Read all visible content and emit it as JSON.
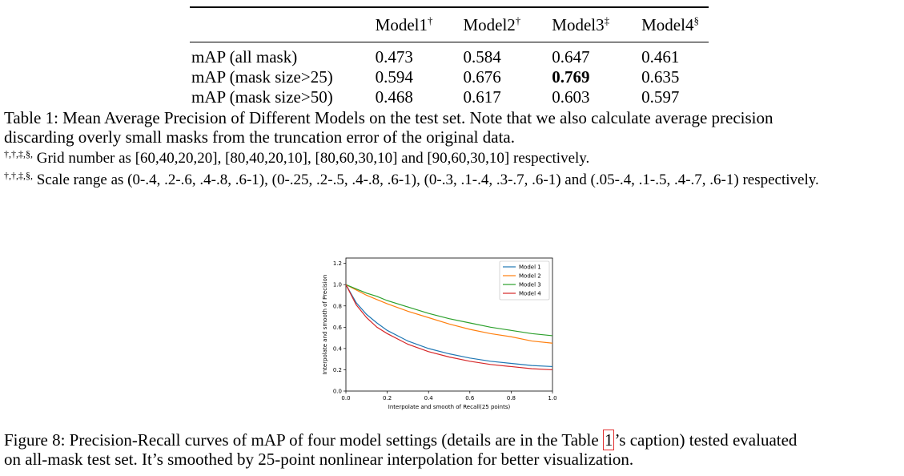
{
  "table": {
    "headers": [
      "",
      "Model1",
      "Model2",
      "Model3",
      "Model4"
    ],
    "header_marks": [
      "",
      "†",
      "†",
      "‡",
      "§"
    ],
    "rows": [
      {
        "label": "mAP (all mask)",
        "values": [
          "0.473",
          "0.584",
          "0.647",
          "0.461"
        ]
      },
      {
        "label": "mAP (mask size>25)",
        "values": [
          "0.594",
          "0.676",
          "0.769",
          "0.635"
        ]
      },
      {
        "label": "mAP (mask size>50)",
        "values": [
          "0.468",
          "0.617",
          "0.603",
          "0.597"
        ]
      }
    ],
    "caption_line1": "Table 1: Mean Average Precision of Different Models on the test set. Note that we also calculate average precision",
    "caption_line2": "discarding overly small masks from the truncation error of the original data.",
    "note_marks": "†,†,‡,§,",
    "note_grid": "Grid number as [60,40,20,20], [80,40,20,10], [80,60,30,10] and [90,60,30,10] respectively.",
    "note_scale": "Scale range as (0-.4, .2-.6, .4-.8, .6-1), (0-.25, .2-.5, .4-.8, .6-1), (0-.3, .1-.4, .3-.7, .6-1) and (.05-.4, .1-.5, .4-.7, .6-1) respectively."
  },
  "figure": {
    "caption_pre": "Figure 8: Precision-Recall curves of mAP of four model settings (details are in the Table ",
    "caption_ref": "1",
    "caption_post": "’s caption) tested evaluated",
    "caption_line2": "on all-mask test set. It’s smoothed by 25-point nonlinear interpolation for better visualization."
  },
  "chart_data": {
    "type": "line",
    "title": "",
    "xlabel": "Interpolate and smooth of Recall(25 points)",
    "ylabel": "Interpolate and smooth of Precision",
    "xlim": [
      0.0,
      1.0
    ],
    "ylim": [
      0.0,
      1.25
    ],
    "xticks": [
      "0.0",
      "0.2",
      "0.4",
      "0.6",
      "0.8",
      "1.0"
    ],
    "yticks": [
      "0.0",
      "0.2",
      "0.4",
      "0.6",
      "0.8",
      "1.0",
      "1.2"
    ],
    "legend_position": "top-right",
    "x": [
      0.0,
      0.05,
      0.1,
      0.15,
      0.2,
      0.3,
      0.4,
      0.5,
      0.6,
      0.7,
      0.8,
      0.9,
      1.0
    ],
    "series": [
      {
        "name": "Model 1",
        "color": "#1f77b4",
        "values": [
          1.0,
          0.83,
          0.72,
          0.64,
          0.57,
          0.47,
          0.4,
          0.35,
          0.31,
          0.28,
          0.26,
          0.24,
          0.23
        ]
      },
      {
        "name": "Model 2",
        "color": "#ff7f0e",
        "values": [
          1.0,
          0.95,
          0.9,
          0.86,
          0.82,
          0.75,
          0.69,
          0.63,
          0.58,
          0.54,
          0.51,
          0.47,
          0.45
        ]
      },
      {
        "name": "Model 3",
        "color": "#2ca02c",
        "values": [
          1.0,
          0.96,
          0.92,
          0.89,
          0.85,
          0.79,
          0.73,
          0.68,
          0.64,
          0.6,
          0.57,
          0.54,
          0.52
        ]
      },
      {
        "name": "Model 4",
        "color": "#d62728",
        "values": [
          1.0,
          0.81,
          0.69,
          0.6,
          0.54,
          0.44,
          0.37,
          0.32,
          0.28,
          0.25,
          0.23,
          0.21,
          0.2
        ]
      }
    ]
  }
}
